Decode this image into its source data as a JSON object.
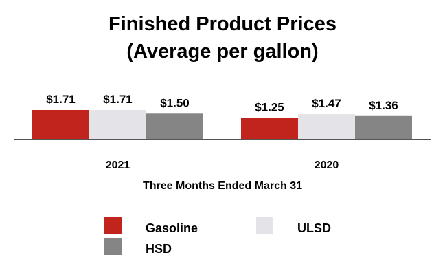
{
  "chart_data": {
    "type": "bar",
    "title": "Finished Product Prices",
    "subtitle": "(Average per gallon)",
    "xlabel": "Three Months Ended March 31",
    "ylabel": "",
    "categories": [
      "2021",
      "2020"
    ],
    "series": [
      {
        "name": "Gasoline",
        "color": "#c0241c",
        "values": [
          1.71,
          1.25
        ],
        "labels": [
          "$1.71",
          "$1.25"
        ]
      },
      {
        "name": "ULSD",
        "color": "#e3e3e8",
        "values": [
          1.71,
          1.47
        ],
        "labels": [
          "$1.71",
          "$1.47"
        ]
      },
      {
        "name": "HSD",
        "color": "#858585",
        "values": [
          1.5,
          1.36
        ],
        "labels": [
          "$1.50",
          "$1.36"
        ]
      }
    ],
    "ylim": [
      0,
      1.71
    ],
    "grid": false,
    "legend_position": "bottom"
  }
}
